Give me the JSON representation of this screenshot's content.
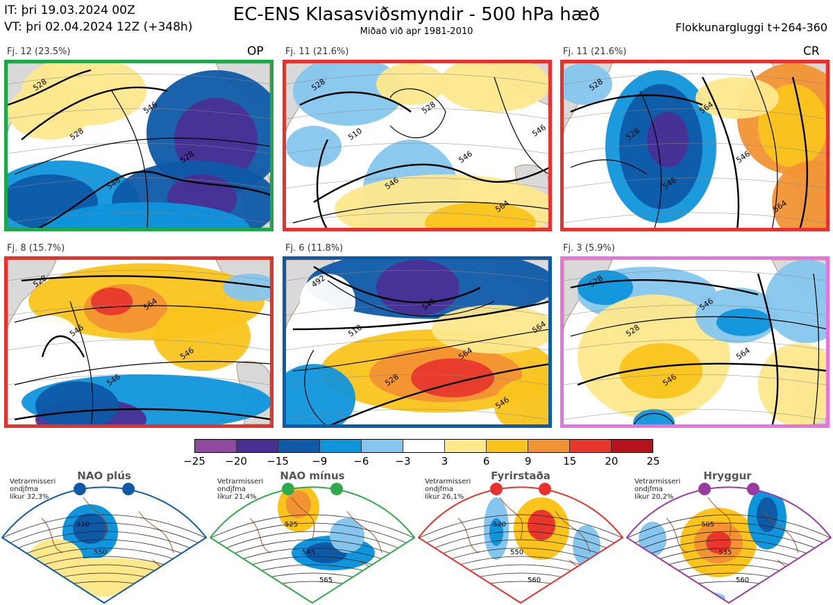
{
  "header": {
    "it_line": "IT: þri 19.03.2024 00Z",
    "vt_line": "VT: þri 02.04.2024 12Z  (+348h)",
    "title": "EC-ENS Klasasviðsmyndir - 500 hPa hæð",
    "subtitle": "Miðað við apr 1981-2010",
    "window": "Flokkunargluggi t+264-360"
  },
  "clusters": [
    {
      "label": "Fj. 12 (23.5%)",
      "tag": "OP",
      "border_color": "#1ea84a",
      "contours": [
        "528",
        "528",
        "546",
        "546",
        "528"
      ]
    },
    {
      "label": "Fj. 11 (21.6%)",
      "tag": "",
      "border_color": "#e8312c",
      "contours": [
        "528",
        "510",
        "546",
        "528",
        "546",
        "564",
        "546"
      ]
    },
    {
      "label": "Fj. 11 (21.6%)",
      "tag": "CR",
      "border_color": "#e8312c",
      "contours": [
        "528",
        "528",
        "546",
        "564",
        "546",
        "564"
      ]
    },
    {
      "label": "Fj. 8 (15.7%)",
      "tag": "",
      "border_color": "#e8312c",
      "contours": [
        "528",
        "546",
        "546",
        "564",
        "546"
      ]
    },
    {
      "label": "Fj. 6 (11.8%)",
      "tag": "",
      "border_color": "#0e5aa7",
      "contours": [
        "492",
        "510",
        "528",
        "546",
        "564",
        "546",
        "564"
      ]
    },
    {
      "label": "Fj. 3 (5.9%)",
      "tag": "",
      "border_color": "#e873e0",
      "contours": [
        "528",
        "528",
        "546",
        "546",
        "564"
      ]
    }
  ],
  "colorbar": {
    "colors": [
      "#8e4a9e",
      "#4a2f93",
      "#0e5aa7",
      "#0f95db",
      "#86c6ee",
      "#ffffff",
      "#fde88c",
      "#fac41c",
      "#f29333",
      "#e7372d",
      "#b5121b"
    ],
    "ticks": [
      "−25",
      "−20",
      "−15",
      "−9",
      "−6",
      "−3",
      "3",
      "6",
      "9",
      "15",
      "20",
      "25"
    ]
  },
  "regimes": [
    {
      "name": "NAO plús",
      "note": "Vetrarmisseri\nondjfma\nlíkur 32,3%",
      "color": "#0e5aa7",
      "contours": [
        "510",
        "550"
      ]
    },
    {
      "name": "NAO mínus",
      "note": "Vetrarmisseri\nondjfma\nlíkur 21,4%",
      "color": "#2eaa4a",
      "contours": [
        "525",
        "545",
        "565"
      ]
    },
    {
      "name": "Fyrirstaða",
      "note": "Vetrarmisseri\nondjfma\nlíkur 26,1%",
      "color": "#e8312c",
      "contours": [
        "520",
        "550",
        "560"
      ]
    },
    {
      "name": "Hryggur",
      "note": "Vetrarmisseri\nondjfma\nlíkur 20,2%",
      "color": "#9a3aa0",
      "contours": [
        "505",
        "535",
        "560"
      ]
    }
  ]
}
